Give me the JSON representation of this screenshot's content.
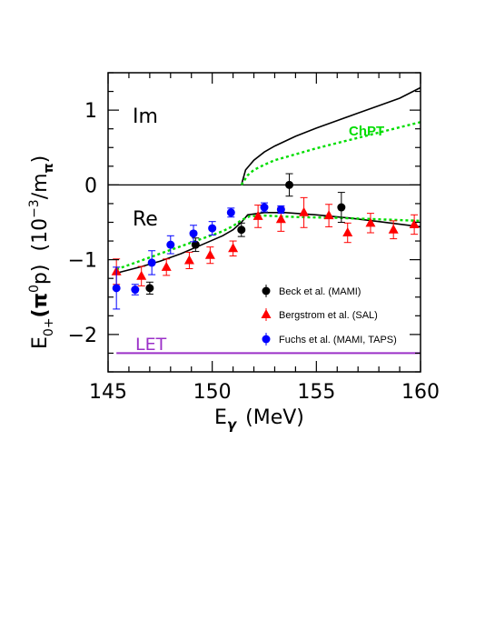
{
  "chart_data": {
    "type": "scatter",
    "xlabel_base": "E",
    "xlabel_sub": "γ",
    "xlabel_unit": "(MeV)",
    "ylabel_base": "E",
    "ylabel_sub": "0+",
    "ylabel_mid": "(π",
    "ylabel_sup0": "0",
    "ylabel_tail": "p)",
    "ylabel_units_a": "(10",
    "ylabel_units_sup": "−3",
    "ylabel_units_b": "/m",
    "ylabel_units_sub": "π",
    "ylabel_units_c": ")",
    "xlim": [
      145,
      160
    ],
    "ylim": [
      -2.5,
      1.5
    ],
    "x_ticks": [
      "145",
      "150",
      "155",
      "160"
    ],
    "y_ticks": [
      "1",
      "0",
      "−1",
      "−2"
    ],
    "y_tick_values": [
      1,
      0,
      -1,
      -2
    ],
    "x_tick_values": [
      145,
      150,
      155,
      160
    ],
    "annotations": {
      "im": "Im",
      "re": "Re",
      "chpt": "ChPT",
      "let": "LET"
    },
    "colors": {
      "beck": "#000000",
      "bergstrom": "#ff0000",
      "fuchs": "#0000ff",
      "chpt": "#00dd00",
      "let": "#9b30c8"
    },
    "legend": [
      {
        "label": "Beck et al. (MAMI)",
        "marker": "circle",
        "color": "#000000"
      },
      {
        "label": "Bergstrom et al. (SAL)",
        "marker": "triangle",
        "color": "#ff0000"
      },
      {
        "label": "Fuchs et al. (MAMI, TAPS)",
        "marker": "circle",
        "color": "#0000ff"
      }
    ],
    "series": [
      {
        "name": "Beck et al. (MAMI)",
        "marker": "circle",
        "color": "#000000",
        "points": [
          {
            "x": 147.0,
            "y": -1.38,
            "err": 0.08
          },
          {
            "x": 149.2,
            "y": -0.8,
            "err": 0.09
          },
          {
            "x": 151.4,
            "y": -0.6,
            "err": 0.09
          },
          {
            "x": 153.7,
            "y": 0.0,
            "err": 0.15
          },
          {
            "x": 156.2,
            "y": -0.3,
            "err": 0.2
          }
        ]
      },
      {
        "name": "Bergstrom et al. (SAL)",
        "marker": "triangle",
        "color": "#ff0000",
        "points": [
          {
            "x": 145.4,
            "y": -1.16,
            "err": 0.17
          },
          {
            "x": 146.6,
            "y": -1.22,
            "err": 0.13
          },
          {
            "x": 147.8,
            "y": -1.1,
            "err": 0.11
          },
          {
            "x": 148.9,
            "y": -1.01,
            "err": 0.11
          },
          {
            "x": 149.9,
            "y": -0.94,
            "err": 0.11
          },
          {
            "x": 151.0,
            "y": -0.85,
            "err": 0.1
          },
          {
            "x": 152.2,
            "y": -0.42,
            "err": 0.15
          },
          {
            "x": 153.3,
            "y": -0.46,
            "err": 0.16
          },
          {
            "x": 154.4,
            "y": -0.37,
            "err": 0.2
          },
          {
            "x": 155.6,
            "y": -0.41,
            "err": 0.15
          },
          {
            "x": 156.5,
            "y": -0.64,
            "err": 0.13
          },
          {
            "x": 157.6,
            "y": -0.51,
            "err": 0.13
          },
          {
            "x": 158.7,
            "y": -0.6,
            "err": 0.12
          },
          {
            "x": 159.7,
            "y": -0.53,
            "err": 0.13
          }
        ]
      },
      {
        "name": "Fuchs et al. (MAMI, TAPS)",
        "marker": "circle",
        "color": "#0000ff",
        "points": [
          {
            "x": 145.4,
            "y": -1.38,
            "err": 0.28
          },
          {
            "x": 146.3,
            "y": -1.4,
            "err": 0.07
          },
          {
            "x": 147.1,
            "y": -1.04,
            "err": 0.16
          },
          {
            "x": 148.0,
            "y": -0.8,
            "err": 0.12
          },
          {
            "x": 149.1,
            "y": -0.65,
            "err": 0.11
          },
          {
            "x": 150.0,
            "y": -0.58,
            "err": 0.09
          },
          {
            "x": 150.9,
            "y": -0.37,
            "err": 0.06
          },
          {
            "x": 152.5,
            "y": -0.3,
            "err": 0.06
          },
          {
            "x": 153.3,
            "y": -0.33,
            "err": 0.05
          }
        ]
      }
    ],
    "curves": {
      "re_solid": [
        [
          145.4,
          -1.18
        ],
        [
          146.5,
          -1.1
        ],
        [
          147.5,
          -1.02
        ],
        [
          148.5,
          -0.92
        ],
        [
          149.5,
          -0.8
        ],
        [
          150.5,
          -0.68
        ],
        [
          151.0,
          -0.6
        ],
        [
          151.4,
          -0.5
        ],
        [
          151.7,
          -0.4
        ],
        [
          152.5,
          -0.37
        ],
        [
          153.5,
          -0.37
        ],
        [
          155.0,
          -0.4
        ],
        [
          156.5,
          -0.44
        ],
        [
          158.0,
          -0.49
        ],
        [
          160.0,
          -0.56
        ]
      ],
      "re_chpt": [
        [
          145.4,
          -1.13
        ],
        [
          146.5,
          -1.02
        ],
        [
          147.5,
          -0.92
        ],
        [
          148.5,
          -0.82
        ],
        [
          149.5,
          -0.72
        ],
        [
          150.5,
          -0.62
        ],
        [
          151.0,
          -0.55
        ],
        [
          151.4,
          -0.47
        ],
        [
          151.8,
          -0.42
        ],
        [
          152.5,
          -0.41
        ],
        [
          154.0,
          -0.43
        ],
        [
          156.0,
          -0.44
        ],
        [
          158.0,
          -0.46
        ],
        [
          160.0,
          -0.48
        ]
      ],
      "im_solid": [
        [
          151.4,
          0.0
        ],
        [
          151.6,
          0.2
        ],
        [
          152.0,
          0.33
        ],
        [
          152.5,
          0.44
        ],
        [
          153.0,
          0.52
        ],
        [
          154.0,
          0.65
        ],
        [
          155.0,
          0.76
        ],
        [
          156.0,
          0.86
        ],
        [
          157.0,
          0.96
        ],
        [
          158.0,
          1.06
        ],
        [
          159.0,
          1.16
        ],
        [
          160.0,
          1.3
        ]
      ],
      "im_chpt": [
        [
          151.4,
          0.0
        ],
        [
          151.7,
          0.13
        ],
        [
          152.0,
          0.2
        ],
        [
          152.5,
          0.27
        ],
        [
          153.0,
          0.33
        ],
        [
          154.0,
          0.41
        ],
        [
          155.0,
          0.49
        ],
        [
          156.0,
          0.56
        ],
        [
          157.0,
          0.63
        ],
        [
          158.0,
          0.7
        ],
        [
          159.0,
          0.77
        ],
        [
          160.0,
          0.84
        ]
      ],
      "zero_line": [
        [
          145,
          0
        ],
        [
          160,
          0
        ]
      ],
      "let_line": [
        [
          145.4,
          -2.25
        ],
        [
          160,
          -2.25
        ]
      ]
    }
  }
}
